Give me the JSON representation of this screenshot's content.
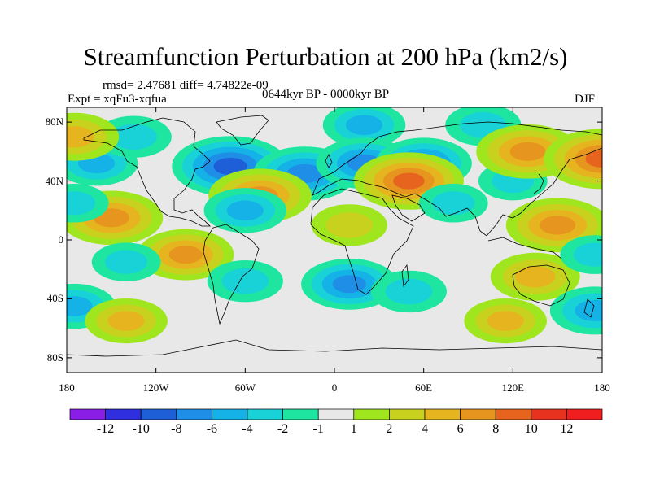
{
  "figure": {
    "title": "Streamfunction Perturbation at 200 hPa (km2/s)",
    "stats": "rmsd= 2.47681 diff= 4.74822e-09",
    "left_label": "Expt = xqFu3-xqfua",
    "center_label": "0644kyr BP - 0000kyr BP",
    "right_label": "DJF"
  },
  "axes": {
    "lat_ticks": [
      "80N",
      "40N",
      "0",
      "40S",
      "80S"
    ],
    "lon_ticks": [
      "180",
      "120W",
      "60W",
      "0",
      "60E",
      "120E",
      "180"
    ]
  },
  "colorbar": {
    "labels": [
      "-12",
      "-10",
      "-8",
      "-6",
      "-4",
      "-2",
      "-1",
      "1",
      "2",
      "4",
      "6",
      "8",
      "10",
      "12"
    ],
    "colors": [
      "#8a1ee6",
      "#2f2fe0",
      "#1e5fd8",
      "#1e8ee6",
      "#14b2e6",
      "#18d2d8",
      "#1ee6a0",
      "#e8e8e8",
      "#a0e61e",
      "#c8d21e",
      "#e6b41e",
      "#e6961e",
      "#e6641e",
      "#e6321e",
      "#f01e1e"
    ]
  },
  "chart_data": {
    "type": "contour-map",
    "variable": "Streamfunction Perturbation at 200 hPa",
    "units": "km2/s",
    "season": "DJF",
    "projection": "cylindrical equidistant",
    "lon_range": [
      -180,
      180
    ],
    "lat_range": [
      -90,
      90
    ],
    "levels": [
      -12,
      -10,
      -8,
      -6,
      -4,
      -2,
      -1,
      1,
      2,
      4,
      6,
      8,
      10,
      12
    ],
    "features": [
      {
        "lon": -70,
        "lat": 50,
        "value": -9
      },
      {
        "lon": -20,
        "lat": 45,
        "value": -7
      },
      {
        "lon": -160,
        "lat": 52,
        "value": -4
      },
      {
        "lon": -135,
        "lat": 70,
        "value": -3
      },
      {
        "lon": 20,
        "lat": 78,
        "value": -4
      },
      {
        "lon": 100,
        "lat": 78,
        "value": -3
      },
      {
        "lon": 20,
        "lat": 52,
        "value": -6
      },
      {
        "lon": 60,
        "lat": 52,
        "value": -6
      },
      {
        "lon": 120,
        "lat": 40,
        "value": -2
      },
      {
        "lon": -50,
        "lat": 30,
        "value": 7
      },
      {
        "lon": 50,
        "lat": 40,
        "value": 8
      },
      {
        "lon": 130,
        "lat": 60,
        "value": 7
      },
      {
        "lon": 180,
        "lat": 55,
        "value": 9
      },
      {
        "lon": -175,
        "lat": 70,
        "value": 5
      },
      {
        "lon": -150,
        "lat": 15,
        "value": 7
      },
      {
        "lon": 150,
        "lat": 10,
        "value": 7
      },
      {
        "lon": 10,
        "lat": 10,
        "value": 3
      },
      {
        "lon": -60,
        "lat": 20,
        "value": -4
      },
      {
        "lon": 80,
        "lat": 25,
        "value": -2
      },
      {
        "lon": -100,
        "lat": -10,
        "value": 6
      },
      {
        "lon": -140,
        "lat": -15,
        "value": -2
      },
      {
        "lon": -60,
        "lat": -28,
        "value": -3
      },
      {
        "lon": 10,
        "lat": -30,
        "value": -6
      },
      {
        "lon": 50,
        "lat": -35,
        "value": -3
      },
      {
        "lon": 135,
        "lat": -25,
        "value": 5
      },
      {
        "lon": 115,
        "lat": -55,
        "value": 4
      },
      {
        "lon": 175,
        "lat": -48,
        "value": -5
      },
      {
        "lon": -175,
        "lat": -45,
        "value": -4
      },
      {
        "lon": -140,
        "lat": -55,
        "value": 4
      },
      {
        "lon": 175,
        "lat": -10,
        "value": -2
      },
      {
        "lon": -175,
        "lat": 25,
        "value": -2
      }
    ]
  }
}
